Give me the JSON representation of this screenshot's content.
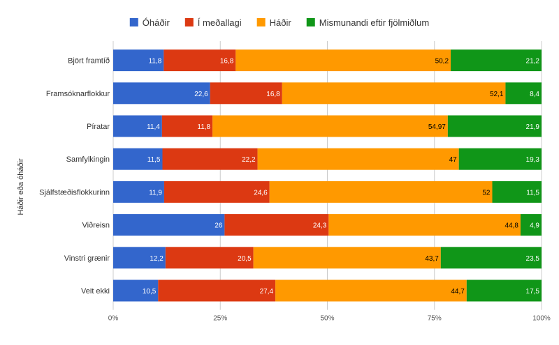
{
  "chart_data": {
    "type": "bar",
    "orientation": "horizontal",
    "stacked": "percent",
    "title": "",
    "xlabel": "",
    "ylabel": "Háðir eða óháðir",
    "xlim": [
      0,
      100
    ],
    "x_ticks": [
      "0%",
      "25%",
      "50%",
      "75%",
      "100%"
    ],
    "x_tick_values": [
      0,
      25,
      50,
      75,
      100
    ],
    "legend_position": "top",
    "grid": true,
    "categories": [
      "Björt framtíð",
      "Framsóknarflokkur",
      "Píratar",
      "Samfylkingin",
      "Sjálfstæðisflokkurinn",
      "Viðreisn",
      "Vinstri grænir",
      "Veit ekki"
    ],
    "series": [
      {
        "name": "Óháðir",
        "color": "#3366cc",
        "label_color": "#ffffff",
        "values": [
          11.8,
          22.6,
          11.4,
          11.5,
          11.9,
          26,
          12.2,
          10.5
        ],
        "labels": [
          "11,8",
          "22,6",
          "11,4",
          "11,5",
          "11,9",
          "26",
          "12,2",
          "10,5"
        ]
      },
      {
        "name": "Í meðallagi",
        "color": "#dc3912",
        "label_color": "#ffffff",
        "values": [
          16.8,
          16.8,
          11.8,
          22.2,
          24.6,
          24.3,
          20.5,
          27.4
        ],
        "labels": [
          "16,8",
          "16,8",
          "11,8",
          "22,2",
          "24,6",
          "24,3",
          "20,5",
          "27,4"
        ]
      },
      {
        "name": "Háðir",
        "color": "#ff9900",
        "label_color": "#000000",
        "values": [
          50.2,
          52.1,
          54.97,
          47,
          52,
          44.8,
          43.7,
          44.7
        ],
        "labels": [
          "50,2",
          "52,1",
          "54,97",
          "47",
          "52",
          "44,8",
          "43,7",
          "44,7"
        ]
      },
      {
        "name": "Mismunandi eftir fjölmiðlum",
        "color": "#109618",
        "label_color": "#ffffff",
        "values": [
          21.2,
          8.4,
          21.9,
          19.3,
          11.5,
          4.9,
          23.5,
          17.5
        ],
        "labels": [
          "21,2",
          "8,4",
          "21,9",
          "19,3",
          "11,5",
          "4,9",
          "23,5",
          "17,5"
        ]
      }
    ]
  }
}
